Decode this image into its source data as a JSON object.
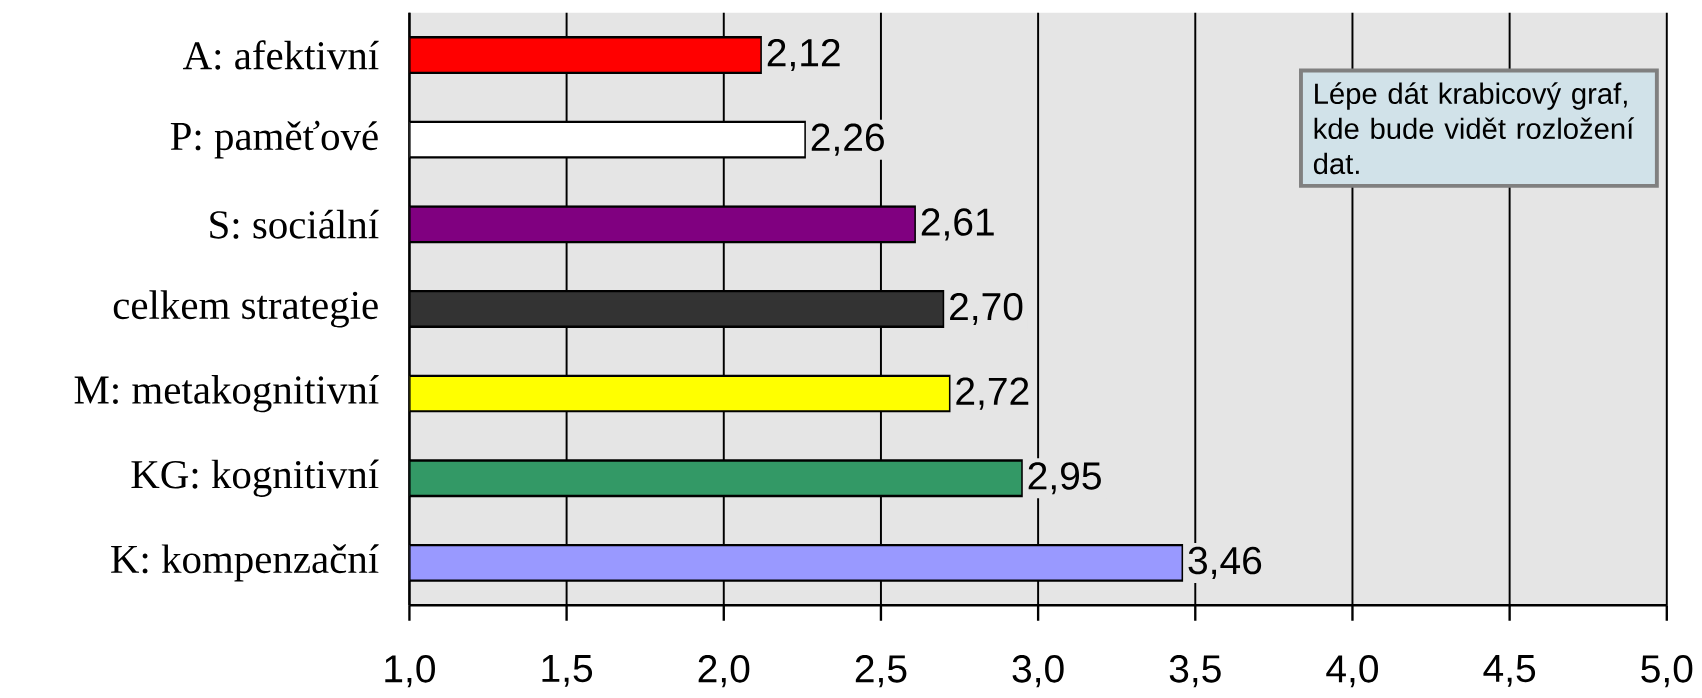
{
  "chart_data": {
    "type": "bar",
    "orientation": "horizontal",
    "categories": [
      "A: afektivní",
      "P: paměťové",
      "S: sociální",
      "celkem strategie",
      "M: metakognitivní",
      "KG: kognitivní",
      "K: kompenzační"
    ],
    "values": [
      2.12,
      2.26,
      2.61,
      2.7,
      2.72,
      2.95,
      3.46
    ],
    "colors": [
      "#ff0000",
      "#ffffff",
      "#800080",
      "#333333",
      "#ffff00",
      "#339966",
      "#9999ff"
    ],
    "value_labels": [
      "2,12",
      "2,26",
      "2,61",
      "2,70",
      "2,72",
      "2,95",
      "3,46"
    ],
    "xlim": [
      1,
      5
    ],
    "xticks": [
      {
        "value": 1,
        "label": "1,0"
      },
      {
        "value": 1.5,
        "label": "1,5"
      },
      {
        "value": 2,
        "label": "2,0"
      },
      {
        "value": 2.5,
        "label": "2,5"
      },
      {
        "value": 3,
        "label": "3,0"
      },
      {
        "value": 3.5,
        "label": "3,5"
      },
      {
        "value": 4,
        "label": "4,0"
      },
      {
        "value": 4.5,
        "label": "4,5"
      },
      {
        "value": 5,
        "label": "5,0"
      }
    ],
    "grid": "x",
    "annotations": [
      "Lépe dát krabicový graf, kde bude vidět rozložení dat."
    ]
  }
}
